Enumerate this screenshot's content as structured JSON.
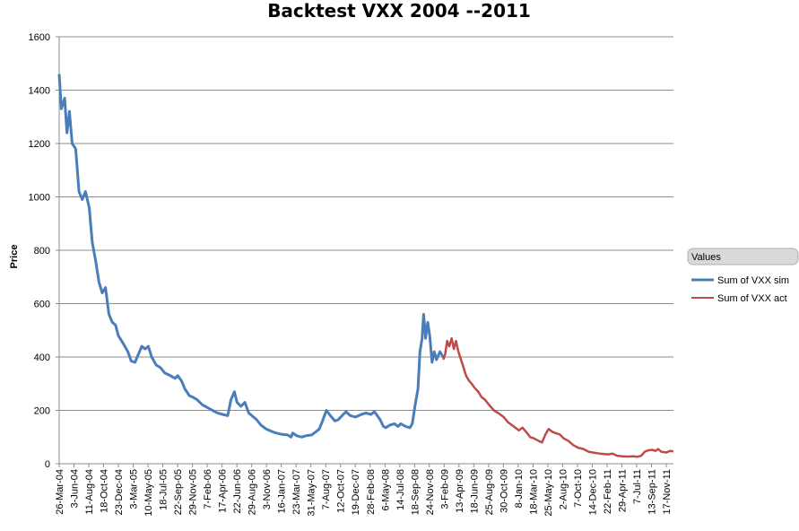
{
  "chart_data": {
    "type": "line",
    "title": "Backtest VXX 2004 --2011",
    "ylabel": "Price",
    "xlabel": "",
    "ylim": [
      0,
      1600
    ],
    "yticks": [
      0,
      200,
      400,
      600,
      800,
      1000,
      1200,
      1400,
      1600
    ],
    "xlim": [
      "2004-03-26",
      "2011-12-20"
    ],
    "grid": true,
    "legend_placement": "right",
    "legend_title": "Values",
    "x_tick_labels": [
      "26-Mar-04",
      "3-Jun-04",
      "11-Aug-04",
      "18-Oct-04",
      "23-Dec-04",
      "3-Mar-05",
      "10-May-05",
      "18-Jul-05",
      "22-Sep-05",
      "29-Nov-05",
      "7-Feb-06",
      "17-Apr-06",
      "22-Jun-06",
      "29-Aug-06",
      "3-Nov-06",
      "16-Jan-07",
      "23-Mar-07",
      "31-May-07",
      "7-Aug-07",
      "12-Oct-07",
      "19-Dec-07",
      "28-Feb-08",
      "6-May-08",
      "14-Jul-08",
      "18-Sep-08",
      "24-Nov-08",
      "3-Feb-09",
      "13-Apr-09",
      "18-Jun-09",
      "25-Aug-09",
      "30-Oct-09",
      "8-Jan-10",
      "18-Mar-10",
      "25-May-10",
      "2-Aug-10",
      "7-Oct-10",
      "14-Dec-10",
      "22-Feb-11",
      "29-Apr-11",
      "7-Jul-11",
      "13-Sep-11",
      "17-Nov-11"
    ],
    "series": [
      {
        "name": "Sum of VXX sim",
        "color": "#4a7ebb",
        "points": [
          [
            "2004-03-26",
            1460
          ],
          [
            "2004-04-05",
            1330
          ],
          [
            "2004-04-20",
            1370
          ],
          [
            "2004-05-01",
            1240
          ],
          [
            "2004-05-12",
            1320
          ],
          [
            "2004-05-25",
            1200
          ],
          [
            "2004-06-10",
            1180
          ],
          [
            "2004-06-25",
            1020
          ],
          [
            "2004-07-10",
            990
          ],
          [
            "2004-07-25",
            1020
          ],
          [
            "2004-08-11",
            960
          ],
          [
            "2004-08-25",
            830
          ],
          [
            "2004-09-10",
            760
          ],
          [
            "2004-09-25",
            680
          ],
          [
            "2004-10-10",
            640
          ],
          [
            "2004-10-25",
            660
          ],
          [
            "2004-11-10",
            560
          ],
          [
            "2004-11-25",
            530
          ],
          [
            "2004-12-10",
            520
          ],
          [
            "2004-12-23",
            480
          ],
          [
            "2005-01-15",
            450
          ],
          [
            "2005-02-05",
            420
          ],
          [
            "2005-02-20",
            385
          ],
          [
            "2005-03-10",
            380
          ],
          [
            "2005-03-25",
            410
          ],
          [
            "2005-04-10",
            440
          ],
          [
            "2005-04-25",
            430
          ],
          [
            "2005-05-10",
            440
          ],
          [
            "2005-05-25",
            400
          ],
          [
            "2005-06-15",
            370
          ],
          [
            "2005-07-05",
            360
          ],
          [
            "2005-07-25",
            340
          ],
          [
            "2005-08-20",
            330
          ],
          [
            "2005-09-10",
            320
          ],
          [
            "2005-09-22",
            330
          ],
          [
            "2005-10-10",
            310
          ],
          [
            "2005-10-25",
            280
          ],
          [
            "2005-11-15",
            255
          ],
          [
            "2005-11-29",
            250
          ],
          [
            "2005-12-20",
            240
          ],
          [
            "2006-01-15",
            220
          ],
          [
            "2006-02-07",
            210
          ],
          [
            "2006-03-01",
            200
          ],
          [
            "2006-03-25",
            190
          ],
          [
            "2006-04-17",
            185
          ],
          [
            "2006-05-10",
            180
          ],
          [
            "2006-05-25",
            240
          ],
          [
            "2006-06-10",
            270
          ],
          [
            "2006-06-22",
            230
          ],
          [
            "2006-07-10",
            215
          ],
          [
            "2006-07-28",
            230
          ],
          [
            "2006-08-15",
            190
          ],
          [
            "2006-08-29",
            180
          ],
          [
            "2006-09-20",
            165
          ],
          [
            "2006-10-10",
            145
          ],
          [
            "2006-11-03",
            130
          ],
          [
            "2006-12-01",
            120
          ],
          [
            "2006-12-20",
            115
          ],
          [
            "2007-01-16",
            110
          ],
          [
            "2007-02-10",
            108
          ],
          [
            "2007-02-25",
            100
          ],
          [
            "2007-03-05",
            115
          ],
          [
            "2007-03-23",
            105
          ],
          [
            "2007-04-15",
            100
          ],
          [
            "2007-05-05",
            105
          ],
          [
            "2007-05-31",
            108
          ],
          [
            "2007-06-20",
            120
          ],
          [
            "2007-07-05",
            130
          ],
          [
            "2007-07-20",
            160
          ],
          [
            "2007-08-07",
            200
          ],
          [
            "2007-08-25",
            180
          ],
          [
            "2007-09-15",
            160
          ],
          [
            "2007-10-01",
            165
          ],
          [
            "2007-10-12",
            175
          ],
          [
            "2007-11-05",
            195
          ],
          [
            "2007-11-25",
            180
          ],
          [
            "2007-12-19",
            175
          ],
          [
            "2008-01-15",
            185
          ],
          [
            "2008-02-05",
            190
          ],
          [
            "2008-02-28",
            185
          ],
          [
            "2008-03-15",
            195
          ],
          [
            "2008-04-10",
            165
          ],
          [
            "2008-04-25",
            140
          ],
          [
            "2008-05-06",
            135
          ],
          [
            "2008-05-25",
            145
          ],
          [
            "2008-06-15",
            150
          ],
          [
            "2008-07-01",
            140
          ],
          [
            "2008-07-14",
            150
          ],
          [
            "2008-08-05",
            140
          ],
          [
            "2008-08-25",
            135
          ],
          [
            "2008-09-05",
            150
          ],
          [
            "2008-09-18",
            220
          ],
          [
            "2008-10-01",
            280
          ],
          [
            "2008-10-10",
            420
          ],
          [
            "2008-10-20",
            470
          ],
          [
            "2008-10-27",
            560
          ],
          [
            "2008-11-05",
            470
          ],
          [
            "2008-11-15",
            530
          ],
          [
            "2008-11-24",
            480
          ],
          [
            "2008-12-05",
            380
          ],
          [
            "2008-12-15",
            420
          ],
          [
            "2008-12-25",
            390
          ],
          [
            "2009-01-10",
            420
          ],
          [
            "2009-01-25",
            400
          ],
          [
            "2009-02-03",
            400
          ]
        ]
      },
      {
        "name": "Sum of VXX act",
        "color": "#be4b48",
        "points": [
          [
            "2009-01-25",
            390
          ],
          [
            "2009-02-03",
            410
          ],
          [
            "2009-02-12",
            460
          ],
          [
            "2009-02-22",
            440
          ],
          [
            "2009-03-05",
            470
          ],
          [
            "2009-03-15",
            430
          ],
          [
            "2009-03-25",
            460
          ],
          [
            "2009-04-05",
            420
          ],
          [
            "2009-04-13",
            400
          ],
          [
            "2009-04-25",
            370
          ],
          [
            "2009-05-10",
            330
          ],
          [
            "2009-05-25",
            310
          ],
          [
            "2009-06-05",
            300
          ],
          [
            "2009-06-18",
            285
          ],
          [
            "2009-07-05",
            270
          ],
          [
            "2009-07-20",
            250
          ],
          [
            "2009-08-05",
            240
          ],
          [
            "2009-08-25",
            220
          ],
          [
            "2009-09-15",
            200
          ],
          [
            "2009-10-05",
            190
          ],
          [
            "2009-10-30",
            175
          ],
          [
            "2009-11-20",
            155
          ],
          [
            "2009-12-15",
            140
          ],
          [
            "2010-01-08",
            125
          ],
          [
            "2010-01-25",
            135
          ],
          [
            "2010-02-15",
            115
          ],
          [
            "2010-03-01",
            100
          ],
          [
            "2010-03-18",
            95
          ],
          [
            "2010-04-10",
            85
          ],
          [
            "2010-04-25",
            80
          ],
          [
            "2010-05-10",
            110
          ],
          [
            "2010-05-25",
            130
          ],
          [
            "2010-06-10",
            120
          ],
          [
            "2010-06-25",
            115
          ],
          [
            "2010-07-15",
            110
          ],
          [
            "2010-08-02",
            95
          ],
          [
            "2010-08-25",
            85
          ],
          [
            "2010-09-15",
            70
          ],
          [
            "2010-10-07",
            60
          ],
          [
            "2010-11-01",
            55
          ],
          [
            "2010-11-25",
            45
          ],
          [
            "2010-12-14",
            42
          ],
          [
            "2011-01-15",
            38
          ],
          [
            "2011-02-22",
            35
          ],
          [
            "2011-03-15",
            38
          ],
          [
            "2011-04-05",
            30
          ],
          [
            "2011-04-29",
            28
          ],
          [
            "2011-05-25",
            27
          ],
          [
            "2011-06-20",
            28
          ],
          [
            "2011-07-07",
            26
          ],
          [
            "2011-07-25",
            30
          ],
          [
            "2011-08-10",
            45
          ],
          [
            "2011-08-25",
            50
          ],
          [
            "2011-09-13",
            52
          ],
          [
            "2011-09-28",
            48
          ],
          [
            "2011-10-10",
            55
          ],
          [
            "2011-10-25",
            45
          ],
          [
            "2011-11-17",
            42
          ],
          [
            "2011-12-05",
            48
          ],
          [
            "2011-12-20",
            46
          ]
        ]
      }
    ]
  }
}
